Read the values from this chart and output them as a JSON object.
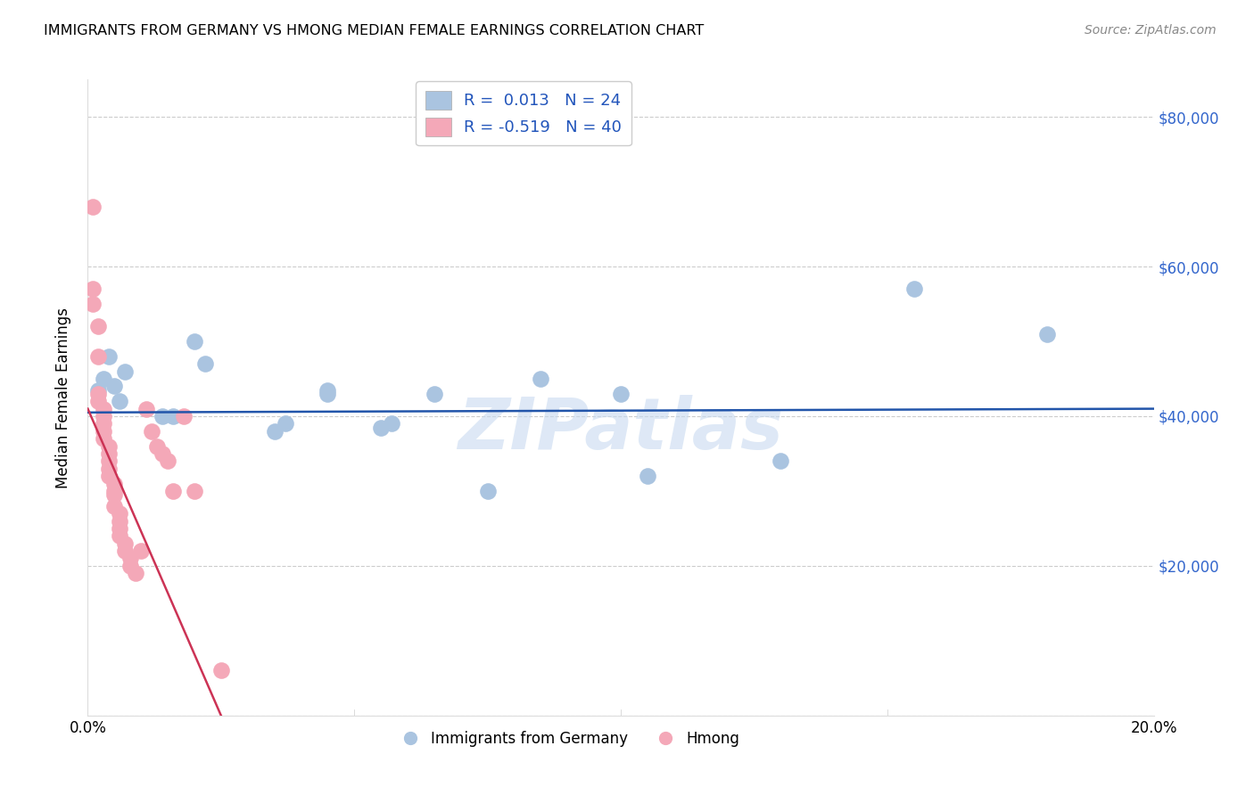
{
  "title": "IMMIGRANTS FROM GERMANY VS HMONG MEDIAN FEMALE EARNINGS CORRELATION CHART",
  "source": "Source: ZipAtlas.com",
  "ylabel": "Median Female Earnings",
  "xlim": [
    0.0,
    0.2
  ],
  "ylim": [
    0,
    85000
  ],
  "yticks": [
    0,
    20000,
    40000,
    60000,
    80000
  ],
  "ytick_labels": [
    "",
    "$20,000",
    "$40,000",
    "$60,000",
    "$80,000"
  ],
  "xticks": [
    0.0,
    0.05,
    0.1,
    0.15,
    0.2
  ],
  "xtick_labels": [
    "0.0%",
    "",
    "",
    "",
    "20.0%"
  ],
  "germany_R": 0.013,
  "germany_N": 24,
  "hmong_R": -0.519,
  "hmong_N": 40,
  "germany_color": "#aac4e0",
  "hmong_color": "#f4a8b8",
  "germany_line_color": "#2255aa",
  "hmong_line_color": "#cc3355",
  "legend_label_germany": "Immigrants from Germany",
  "legend_label_hmong": "Hmong",
  "watermark": "ZIPatlas",
  "germany_x": [
    0.002,
    0.003,
    0.004,
    0.005,
    0.006,
    0.007,
    0.014,
    0.016,
    0.02,
    0.022,
    0.035,
    0.037,
    0.055,
    0.057,
    0.065,
    0.085,
    0.1,
    0.105,
    0.13,
    0.155,
    0.18,
    0.075,
    0.045,
    0.045
  ],
  "germany_y": [
    43500,
    45000,
    48000,
    44000,
    42000,
    46000,
    40000,
    40000,
    50000,
    47000,
    38000,
    39000,
    38500,
    39000,
    43000,
    45000,
    43000,
    32000,
    34000,
    57000,
    51000,
    30000,
    43000,
    43500
  ],
  "hmong_x": [
    0.001,
    0.001,
    0.001,
    0.002,
    0.002,
    0.002,
    0.002,
    0.003,
    0.003,
    0.003,
    0.003,
    0.003,
    0.004,
    0.004,
    0.004,
    0.004,
    0.004,
    0.005,
    0.005,
    0.005,
    0.005,
    0.006,
    0.006,
    0.006,
    0.006,
    0.007,
    0.007,
    0.008,
    0.008,
    0.009,
    0.01,
    0.011,
    0.012,
    0.013,
    0.014,
    0.015,
    0.016,
    0.018,
    0.02,
    0.025
  ],
  "hmong_y": [
    68000,
    57000,
    55000,
    52000,
    48000,
    43000,
    42000,
    41000,
    40000,
    39000,
    38000,
    37000,
    36000,
    35000,
    34000,
    33000,
    32000,
    31000,
    30000,
    29500,
    28000,
    27000,
    26000,
    25000,
    24000,
    23000,
    22000,
    21000,
    20000,
    19000,
    22000,
    41000,
    38000,
    36000,
    35000,
    34000,
    30000,
    40000,
    30000,
    6000
  ],
  "germany_line_x": [
    0.0,
    0.2
  ],
  "germany_line_y": [
    40500,
    41000
  ],
  "hmong_line_x": [
    0.0,
    0.025
  ],
  "hmong_line_y": [
    41000,
    0
  ]
}
